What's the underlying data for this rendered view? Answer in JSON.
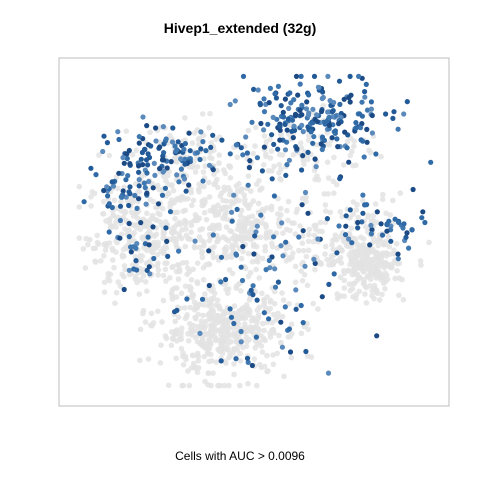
{
  "chart_data": {
    "type": "scatter",
    "title": "Hivep1_extended (32g)",
    "xlabel": "Cells with AUC > 0.0096",
    "ylabel": "",
    "xlim": [
      0,
      100
    ],
    "ylim": [
      0,
      100
    ],
    "grid": false,
    "legend": "none",
    "colors": {
      "background_cells": "#e3e3e3",
      "active_cells": "#1f4e89",
      "frame": "#bdbdbd"
    },
    "clusters": [
      {
        "group": "background",
        "n": 340,
        "cx": 20,
        "cy": 49,
        "sx": 8,
        "sy": 9
      },
      {
        "group": "background",
        "n": 460,
        "cx": 41,
        "cy": 19,
        "sx": 9,
        "sy": 7
      },
      {
        "group": "background",
        "n": 260,
        "cx": 45,
        "cy": 52,
        "sx": 9,
        "sy": 8
      },
      {
        "group": "background",
        "n": 170,
        "cx": 73,
        "cy": 47,
        "sx": 9,
        "sy": 7
      },
      {
        "group": "background",
        "n": 230,
        "cx": 81,
        "cy": 39,
        "sx": 4,
        "sy": 5
      },
      {
        "group": "background",
        "n": 120,
        "cx": 35,
        "cy": 72,
        "sx": 9,
        "sy": 6
      },
      {
        "group": "background",
        "n": 80,
        "cx": 65,
        "cy": 76,
        "sx": 9,
        "sy": 5
      },
      {
        "group": "active",
        "n": 210,
        "cx": 67,
        "cy": 85,
        "sx": 10,
        "sy": 6
      },
      {
        "group": "active",
        "n": 110,
        "cx": 26,
        "cy": 73,
        "sx": 10,
        "sy": 5
      },
      {
        "group": "active",
        "n": 35,
        "cx": 15,
        "cy": 62,
        "sx": 5,
        "sy": 3
      },
      {
        "group": "active",
        "n": 45,
        "cx": 84,
        "cy": 52,
        "sx": 7,
        "sy": 4
      },
      {
        "group": "active",
        "n": 85,
        "cx": 48,
        "cy": 45,
        "sx": 15,
        "sy": 14
      },
      {
        "group": "active",
        "n": 25,
        "cx": 18,
        "cy": 42,
        "sx": 5,
        "sy": 7
      },
      {
        "group": "active",
        "n": 20,
        "cx": 52,
        "cy": 17,
        "sx": 6,
        "sy": 7
      }
    ]
  }
}
